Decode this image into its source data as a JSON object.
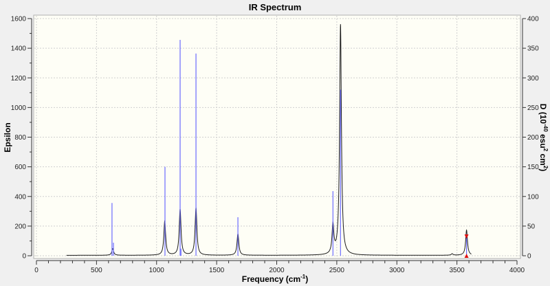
{
  "chart_data": {
    "type": "line",
    "title": "IR Spectrum",
    "xlabel": "Frequency (cm-1)",
    "xlabel_main": "Frequency (cm",
    "xlabel_sup": "-1",
    "xlabel_end": ")",
    "ylabel": "Epsilon",
    "y2label_parts": {
      "a": "D (10",
      "b": "-40",
      "c": " esu",
      "d": "2",
      "e": " cm",
      "f": "2",
      "g": ")"
    },
    "xlim": [
      0,
      4000
    ],
    "ylim": [
      0,
      1600
    ],
    "y2lim": [
      0,
      400
    ],
    "xticks": [
      "0",
      "500",
      "1000",
      "1500",
      "2000",
      "2500",
      "3000",
      "3500",
      "4000"
    ],
    "yticks": [
      "0",
      "200",
      "400",
      "600",
      "800",
      "1000",
      "1200",
      "1400",
      "1600"
    ],
    "y2ticks": [
      "0",
      "50",
      "100",
      "150",
      "200",
      "250",
      "300",
      "350",
      "400"
    ],
    "grid": true,
    "colors": {
      "curve": "#1a1a1a",
      "sticks": "#6a6aff",
      "marker": "#e01010",
      "plot_bg": "#fefef6"
    },
    "curve_range": [
      250,
      3620
    ],
    "curve_peaks": [
      {
        "x": 635,
        "epsilon": 45
      },
      {
        "x": 1068,
        "epsilon": 230
      },
      {
        "x": 1196,
        "epsilon": 310
      },
      {
        "x": 1328,
        "epsilon": 320
      },
      {
        "x": 1677,
        "epsilon": 145
      },
      {
        "x": 2468,
        "epsilon": 195
      },
      {
        "x": 2531,
        "epsilon": 1555
      },
      {
        "x": 3460,
        "epsilon": 10
      },
      {
        "x": 3580,
        "epsilon": 170
      }
    ],
    "sticks": [
      {
        "x": 629,
        "D": 89
      },
      {
        "x": 641,
        "D": 22
      },
      {
        "x": 1070,
        "D": 150
      },
      {
        "x": 1196,
        "D": 364
      },
      {
        "x": 1203,
        "D": 12
      },
      {
        "x": 1328,
        "D": 341
      },
      {
        "x": 1677,
        "D": 65
      },
      {
        "x": 2468,
        "D": 109
      },
      {
        "x": 2531,
        "D": 280
      },
      {
        "x": 3580,
        "D": 31
      }
    ],
    "selected_peak": {
      "x": 3580
    }
  }
}
